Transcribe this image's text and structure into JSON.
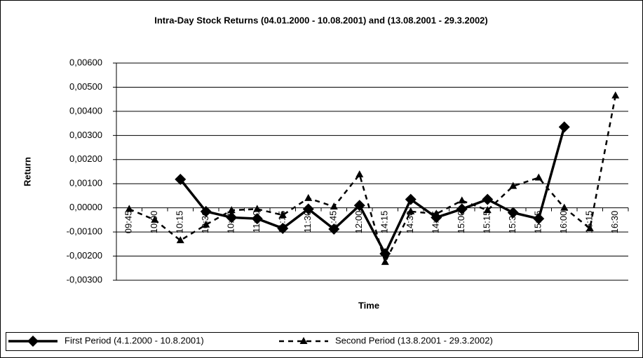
{
  "chart_data": {
    "type": "line",
    "title": "Intra-Day Stock Returns (04.01.2000 - 10.08.2001) and (13.08.2001 - 29.3.2002)",
    "x_label": "Time",
    "y_label": "Return",
    "categories": [
      "09:45",
      "10:00",
      "10:15",
      "10:30",
      "10:45",
      "11:00",
      "11:15",
      "11:30",
      "11:45",
      "12:00",
      "14:15",
      "14:30",
      "14:45",
      "15:00",
      "15:15",
      "15:30",
      "15:45",
      "16:00",
      "16:15",
      "16:30"
    ],
    "series": [
      {
        "name": "First Period (4.1.2000 - 10.8.2001)",
        "color": "#000000",
        "marker": "diamond",
        "dashed": false,
        "values": [
          null,
          null,
          0.00118,
          -0.00015,
          -0.0004,
          -0.00045,
          -0.00085,
          -5e-05,
          -0.00088,
          0.0001,
          -0.0019,
          0.00035,
          -0.0004,
          -5e-05,
          0.00035,
          -0.0002,
          -0.00045,
          0.00335,
          null,
          null
        ]
      },
      {
        "name": "Second Period (13.8.2001 - 29.3.2002)",
        "color": "#000000",
        "marker": "triangle",
        "dashed": true,
        "values": [
          -5e-05,
          -0.0005,
          -0.00135,
          -0.0007,
          -0.0001,
          -5e-05,
          -0.0003,
          0.0004,
          5e-05,
          0.00138,
          -0.00225,
          -0.00015,
          -0.00025,
          0.0003,
          -0.0001,
          0.0009,
          0.00125,
          0.0,
          -0.00085,
          0.00465
        ]
      }
    ],
    "ylim": [
      -0.003,
      0.006
    ],
    "yticks": [
      {
        "value": -0.003,
        "label": "-0,00300"
      },
      {
        "value": -0.002,
        "label": "-0,00200"
      },
      {
        "value": -0.001,
        "label": "-0,00100"
      },
      {
        "value": 0,
        "label": "0,00000"
      },
      {
        "value": 0.001,
        "label": "0,00100"
      },
      {
        "value": 0.002,
        "label": "0,00200"
      },
      {
        "value": 0.003,
        "label": "0,00300"
      },
      {
        "value": 0.004,
        "label": "0,00400"
      },
      {
        "value": 0.005,
        "label": "0,00500"
      },
      {
        "value": 0.006,
        "label": "0,00600"
      }
    ],
    "grid": true,
    "legend": "bottom"
  }
}
